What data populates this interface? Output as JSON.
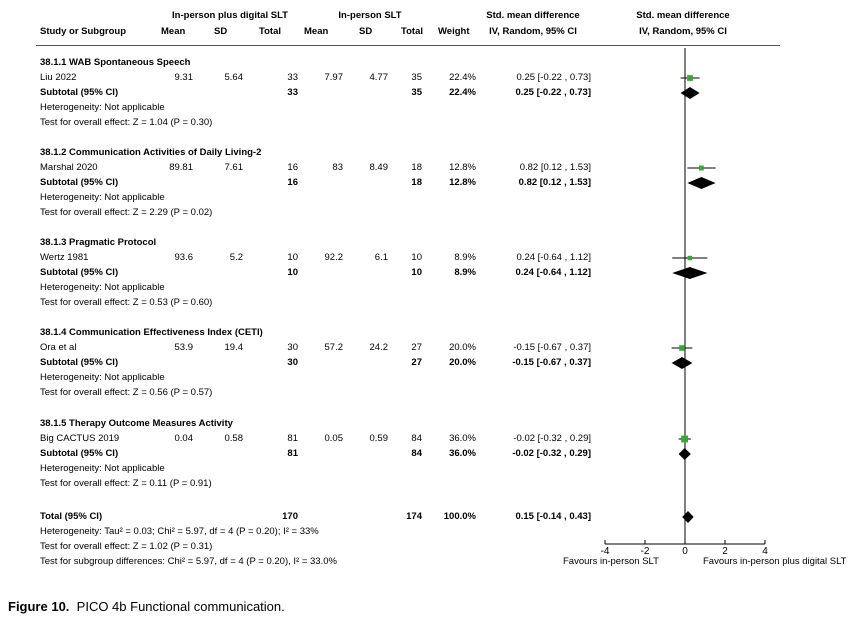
{
  "header": {
    "group1": "In-person plus digital SLT",
    "group2": "In-person SLT",
    "effect_top": "Std. mean difference",
    "effect_bottom": "IV, Random, 95% CI",
    "plot_top": "Std. mean difference",
    "plot_bottom": "IV, Random, 95% CI",
    "study": "Study or Subgroup",
    "mean": "Mean",
    "sd": "SD",
    "total": "Total",
    "weight": "Weight"
  },
  "subgroups": [
    {
      "title": "38.1.1 WAB Spontaneous Speech",
      "study": {
        "name": "Liu 2022",
        "m1": "9.31",
        "sd1": "5.64",
        "n1": "33",
        "m2": "7.97",
        "sd2": "4.77",
        "n2": "35",
        "weight": "22.4%",
        "ci": "0.25 [-0.22 , 0.73]"
      },
      "subtotal": {
        "label": "Subtotal (95% CI)",
        "n1": "33",
        "n2": "35",
        "weight": "22.4%",
        "ci": "0.25 [-0.22 , 0.73]"
      },
      "heterogeneity": "Heterogeneity: Not applicable",
      "overall": "Test for overall effect: Z = 1.04 (P = 0.30)"
    },
    {
      "title": "38.1.2 Communication Activities of Daily Living-2",
      "study": {
        "name": "Marshal 2020",
        "m1": "89.81",
        "sd1": "7.61",
        "n1": "16",
        "m2": "83",
        "sd2": "8.49",
        "n2": "18",
        "weight": "12.8%",
        "ci": "0.82 [0.12 , 1.53]"
      },
      "subtotal": {
        "label": "Subtotal (95% CI)",
        "n1": "16",
        "n2": "18",
        "weight": "12.8%",
        "ci": "0.82 [0.12 , 1.53]"
      },
      "heterogeneity": "Heterogeneity: Not applicable",
      "overall": "Test for overall effect: Z = 2.29 (P = 0.02)"
    },
    {
      "title": "38.1.3 Pragmatic Protocol",
      "study": {
        "name": "Wertz 1981",
        "m1": "93.6",
        "sd1": "5.2",
        "n1": "10",
        "m2": "92.2",
        "sd2": "6.1",
        "n2": "10",
        "weight": "8.9%",
        "ci": "0.24 [-0.64 , 1.12]"
      },
      "subtotal": {
        "label": "Subtotal (95% CI)",
        "n1": "10",
        "n2": "10",
        "weight": "8.9%",
        "ci": "0.24 [-0.64 , 1.12]"
      },
      "heterogeneity": "Heterogeneity: Not applicable",
      "overall": "Test for overall effect: Z = 0.53 (P = 0.60)"
    },
    {
      "title": "38.1.4 Communication Effectiveness Index (CETI)",
      "study": {
        "name": "Ora et al",
        "m1": "53.9",
        "sd1": "19.4",
        "n1": "30",
        "m2": "57.2",
        "sd2": "24.2",
        "n2": "27",
        "weight": "20.0%",
        "ci": "-0.15 [-0.67 , 0.37]"
      },
      "subtotal": {
        "label": "Subtotal (95% CI)",
        "n1": "30",
        "n2": "27",
        "weight": "20.0%",
        "ci": "-0.15 [-0.67 , 0.37]"
      },
      "heterogeneity": "Heterogeneity: Not applicable",
      "overall": "Test for overall effect: Z = 0.56 (P = 0.57)"
    },
    {
      "title": "38.1.5 Therapy Outcome Measures Activity",
      "study": {
        "name": "Big CACTUS 2019",
        "m1": "0.04",
        "sd1": "0.58",
        "n1": "81",
        "m2": "0.05",
        "sd2": "0.59",
        "n2": "84",
        "weight": "36.0%",
        "ci": "-0.02 [-0.32 , 0.29]"
      },
      "subtotal": {
        "label": "Subtotal (95% CI)",
        "n1": "81",
        "n2": "84",
        "weight": "36.0%",
        "ci": "-0.02 [-0.32 , 0.29]"
      },
      "heterogeneity": "Heterogeneity: Not applicable",
      "overall": "Test for overall effect: Z = 0.11 (P = 0.91)"
    }
  ],
  "total": {
    "label": "Total (95% CI)",
    "n1": "170",
    "n2": "174",
    "weight": "100.0%",
    "ci": "0.15 [-0.14 , 0.43]",
    "heterogeneity": "Heterogeneity: Tau² = 0.03; Chi² = 5.97, df = 4 (P = 0.20); I² = 33%",
    "overall": "Test for overall effect: Z = 1.02 (P = 0.31)",
    "subgroup": "Test for subgroup differences: Chi² = 5.97, df = 4 (P = 0.20), I² = 33.0%"
  },
  "axis": {
    "ticks": [
      "-4",
      "-2",
      "0",
      "2",
      "4"
    ],
    "favours_left": "Favours in-person SLT",
    "favours_right": "Favours in-person plus digital SLT"
  },
  "caption": {
    "label": "Figure 10.",
    "text": "PICO 4b Functional communication."
  },
  "colors": {
    "study_marker": "#3aa53a",
    "diamond": "#000000"
  },
  "chart_data": {
    "type": "forest",
    "xlim": [
      -4,
      4
    ],
    "studies": [
      {
        "name": "Liu 2022",
        "smd": 0.25,
        "lo": -0.22,
        "hi": 0.73
      },
      {
        "name": "Marshal 2020",
        "smd": 0.82,
        "lo": 0.12,
        "hi": 1.53
      },
      {
        "name": "Wertz 1981",
        "smd": 0.24,
        "lo": -0.64,
        "hi": 1.12
      },
      {
        "name": "Ora et al",
        "smd": -0.15,
        "lo": -0.67,
        "hi": 0.37
      },
      {
        "name": "Big CACTUS 2019",
        "smd": -0.02,
        "lo": -0.32,
        "hi": 0.29
      }
    ],
    "subtotals": [
      {
        "smd": 0.25,
        "lo": -0.22,
        "hi": 0.73
      },
      {
        "smd": 0.82,
        "lo": 0.12,
        "hi": 1.53
      },
      {
        "smd": 0.24,
        "lo": -0.64,
        "hi": 1.12
      },
      {
        "smd": -0.15,
        "lo": -0.67,
        "hi": 0.37
      },
      {
        "smd": -0.02,
        "lo": -0.32,
        "hi": 0.29
      }
    ],
    "total": {
      "smd": 0.15,
      "lo": -0.14,
      "hi": 0.43
    }
  }
}
